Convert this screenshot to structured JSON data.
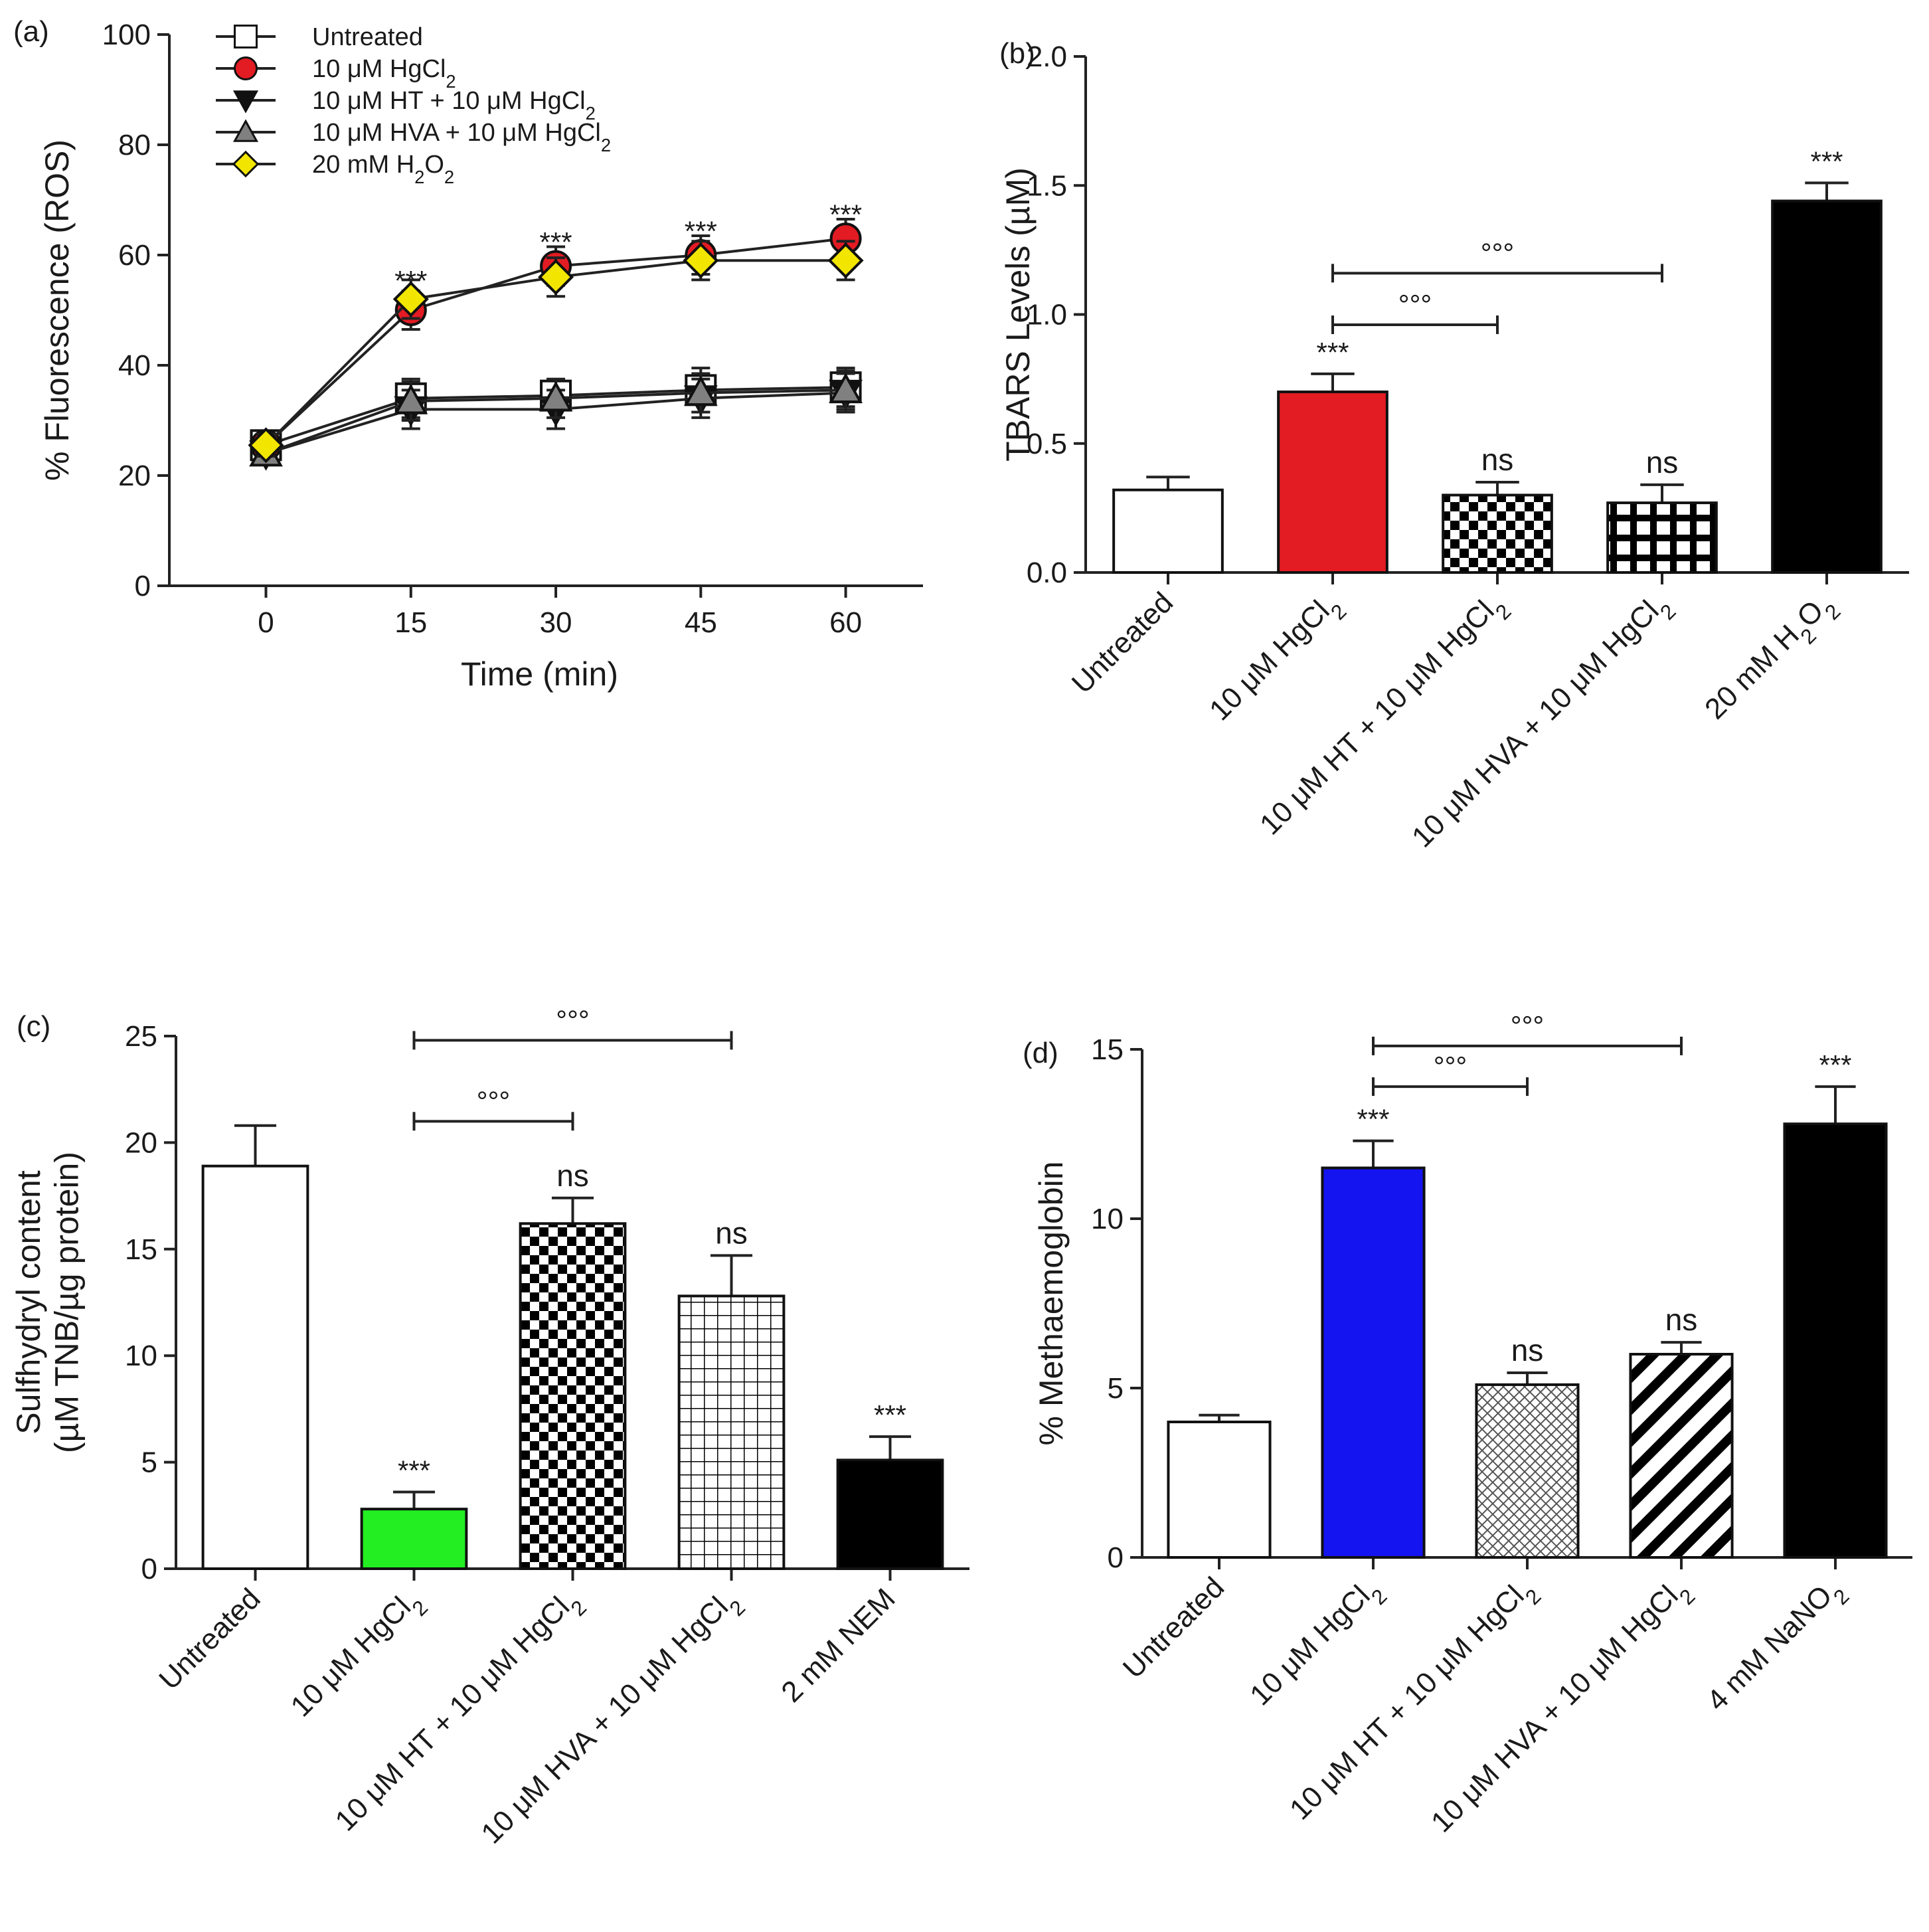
{
  "chart_data": [
    {
      "panel": "(a)",
      "type": "line",
      "xlabel": "Time (min)",
      "ylabel": "% Fluorescence (ROS)",
      "x": [
        0,
        15,
        30,
        45,
        60
      ],
      "xticks": [
        "0",
        "15",
        "30",
        "45",
        "60"
      ],
      "xlim": [
        -10,
        68
      ],
      "ylim": [
        0,
        100
      ],
      "yticks": [
        "0",
        "20",
        "40",
        "60",
        "80",
        "100"
      ],
      "sig_labels": [
        {
          "x": 15,
          "y": 56,
          "text": "***"
        },
        {
          "x": 30,
          "y": 63,
          "text": "***"
        },
        {
          "x": 45,
          "y": 65,
          "text": "***"
        },
        {
          "x": 60,
          "y": 68,
          "text": "***"
        }
      ],
      "series": [
        {
          "name": "Untreated",
          "legend": [
            "Untreated",
            "",
            ""
          ],
          "marker": "square",
          "color": "#ffffff",
          "values": [
            25.5,
            34,
            34.5,
            35.5,
            36
          ],
          "errors": [
            2,
            3.5,
            2.5,
            4,
            3.5
          ]
        },
        {
          "name": "10 µM HgCl2",
          "legend": [
            "10 μM HgCl",
            "2",
            ""
          ],
          "marker": "circle",
          "color": "#e31b23",
          "values": [
            25.5,
            50,
            58,
            60,
            63
          ],
          "errors": [
            2,
            3.5,
            3.5,
            3.5,
            3.5
          ]
        },
        {
          "name": "10 µM HT + 10 µM HgCl2",
          "legend": [
            "10 μM HT + 10 μM HgCl",
            "2",
            ""
          ],
          "marker": "triangle-down",
          "color": "#111111",
          "values": [
            24,
            32,
            32,
            34,
            35
          ],
          "errors": [
            2,
            3.5,
            3.5,
            3.5,
            3.5
          ]
        },
        {
          "name": "10 µM HVA + 10 µM HgCl2",
          "legend": [
            "10 μM HVA + 10 μM HgCl",
            "2",
            ""
          ],
          "marker": "triangle-up",
          "color": "#808080",
          "values": [
            24,
            33.5,
            34,
            35,
            35.5
          ],
          "errors": [
            2,
            3.5,
            3.5,
            3.5,
            3.5
          ]
        },
        {
          "name": "20 mM H2O2",
          "legend": [
            "20 mM H",
            "2",
            "O",
            "2"
          ],
          "marker": "diamond",
          "color": "#f2e600",
          "values": [
            25.5,
            52,
            56,
            59,
            59
          ],
          "errors": [
            2,
            3.5,
            3.5,
            3.5,
            3.5
          ]
        }
      ]
    },
    {
      "panel": "(b)",
      "type": "bar",
      "ylabel": "TBARS Levels (µM)",
      "ylim": [
        0,
        2.0
      ],
      "yticks": [
        "0.0",
        "0.5",
        "1.0",
        "1.5",
        "2.0"
      ],
      "categories": [
        [
          "Untreated"
        ],
        [
          "10 μM HgCl",
          "2",
          ""
        ],
        [
          "10 μM HT + 10 μM HgCl",
          "2",
          ""
        ],
        [
          "10 μM HVA + 10 μM HgCl",
          "2",
          ""
        ],
        [
          "20 mM H",
          "2",
          "O",
          "2"
        ]
      ],
      "values": [
        0.32,
        0.7,
        0.3,
        0.27,
        1.44
      ],
      "errors": [
        0.05,
        0.07,
        0.05,
        0.07,
        0.07
      ],
      "fills": [
        "white",
        "#e31b23",
        "checker",
        "grid-white",
        "#000000"
      ],
      "sig_labels": [
        "",
        "***",
        "ns",
        "ns",
        "***"
      ],
      "brackets": [
        {
          "from": 1,
          "to": 2,
          "y": 0.96,
          "text": "°°°"
        },
        {
          "from": 1,
          "to": 3,
          "y": 1.16,
          "text": "°°°"
        }
      ]
    },
    {
      "panel": "(c)",
      "type": "bar",
      "ylabel": [
        "Sulfhydryl content",
        "(µM TNB/µg protein)"
      ],
      "ylim": [
        0,
        25
      ],
      "yticks": [
        "0",
        "5",
        "10",
        "15",
        "20",
        "25"
      ],
      "categories": [
        [
          "Untreated"
        ],
        [
          "10 μM HgCl",
          "2",
          ""
        ],
        [
          "10 μM HT + 10 μM HgCl",
          "2",
          ""
        ],
        [
          "10 μM HVA + 10 μM HgCl",
          "2",
          ""
        ],
        [
          "2 mM NEM"
        ]
      ],
      "values": [
        18.9,
        2.8,
        16.2,
        12.8,
        5.1
      ],
      "errors": [
        1.9,
        0.8,
        1.2,
        1.9,
        1.1
      ],
      "fills": [
        "white",
        "#22ee22",
        "checker",
        "grid-fine",
        "#000000"
      ],
      "sig_labels": [
        "",
        "***",
        "ns",
        "ns",
        "***"
      ],
      "brackets": [
        {
          "from": 1,
          "to": 2,
          "y": 21.0,
          "text": "°°°"
        },
        {
          "from": 1,
          "to": 3,
          "y": 24.8,
          "text": "°°°"
        }
      ]
    },
    {
      "panel": "(d)",
      "type": "bar",
      "ylabel": "% Methaemoglobin",
      "ylim": [
        0,
        15
      ],
      "yticks": [
        "0",
        "5",
        "10",
        "15"
      ],
      "categories": [
        [
          "Untreated"
        ],
        [
          "10 μM HgCl",
          "2",
          ""
        ],
        [
          "10 μM HT + 10 μM HgCl",
          "2",
          ""
        ],
        [
          "10 μM HVA + 10 μM HgCl",
          "2",
          ""
        ],
        [
          "4 mM NaNO",
          "2",
          ""
        ]
      ],
      "values": [
        4.0,
        11.5,
        5.1,
        6.0,
        12.8
      ],
      "errors": [
        0.2,
        0.8,
        0.35,
        0.35,
        1.1
      ],
      "fills": [
        "white",
        "#1414f0",
        "crosshatch",
        "diagonal",
        "#000000"
      ],
      "sig_labels": [
        "",
        "***",
        "ns",
        "ns",
        "***"
      ],
      "brackets": [
        {
          "from": 1,
          "to": 2,
          "y": 13.9,
          "text": "°°°"
        },
        {
          "from": 1,
          "to": 3,
          "y": 15.1,
          "text": "°°°"
        }
      ]
    }
  ]
}
